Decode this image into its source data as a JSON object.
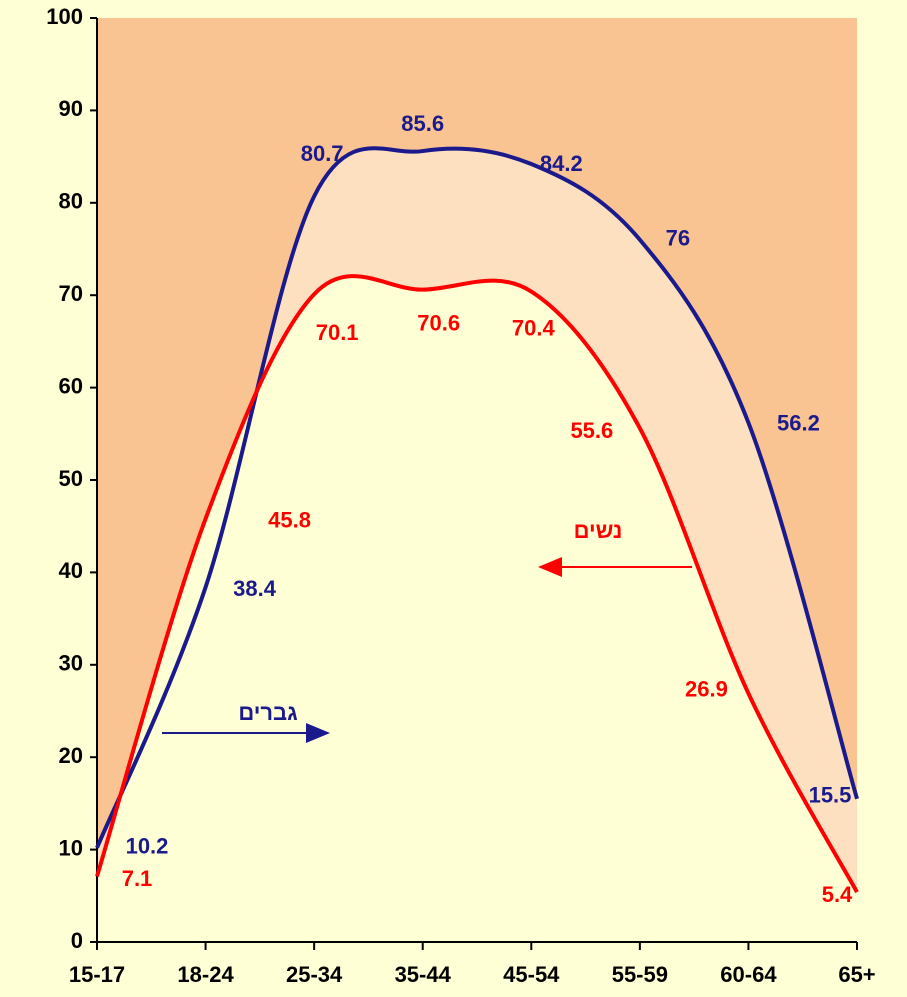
{
  "chart_data": {
    "type": "line",
    "categories": [
      "15-17",
      "18-24",
      "25-34",
      "35-44",
      "45-54",
      "55-59",
      "60-64",
      "65+"
    ],
    "series": [
      {
        "name": "גברים",
        "color": "#1a1a8c",
        "values": [
          10.2,
          38.4,
          80.7,
          85.6,
          84.2,
          76,
          56.2,
          15.5
        ]
      },
      {
        "name": "נשים",
        "color": "#ff0000",
        "values": [
          7.1,
          45.8,
          70.1,
          70.6,
          70.4,
          55.6,
          26.9,
          5.4
        ]
      }
    ],
    "ylim": [
      0,
      100
    ],
    "yticks": [
      0,
      10,
      20,
      30,
      40,
      50,
      60,
      70,
      80,
      90,
      100
    ],
    "colors": {
      "upper": "#f9c491",
      "band": "#fde0c0",
      "lower": "#ffffd6"
    }
  }
}
